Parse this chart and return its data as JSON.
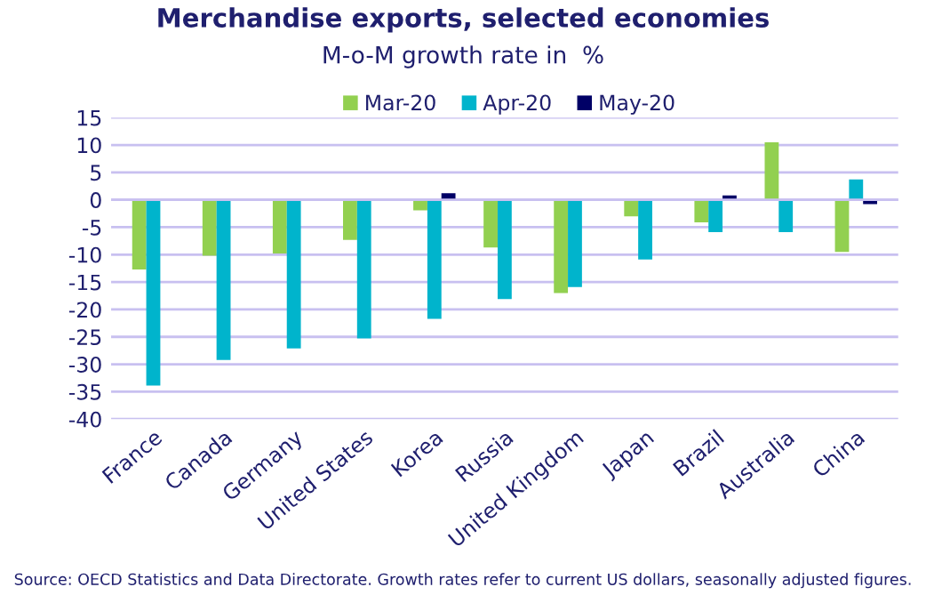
{
  "chart_data": {
    "type": "bar",
    "title": "Merchandise exports, selected economies",
    "subtitle": "M-o-M growth rate in  %",
    "categories": [
      "France",
      "Canada",
      "Germany",
      "United States",
      "Korea",
      "Russia",
      "United Kingdom",
      "Japan",
      "Brazil",
      "Australia",
      "China"
    ],
    "series": [
      {
        "name": "Mar-20",
        "color": "#92d050",
        "values": [
          -12.7,
          -10.2,
          -9.8,
          -7.3,
          -1.9,
          -8.7,
          -17,
          -3,
          -4.1,
          10.5,
          -9.5
        ]
      },
      {
        "name": "Apr-20",
        "color": "#00b4cc",
        "values": [
          -33.9,
          -29.2,
          -27.1,
          -25.3,
          -21.7,
          -18.1,
          -15.9,
          -10.9,
          -5.9,
          -5.9,
          3.7
        ]
      },
      {
        "name": "May-20",
        "color": "#000066",
        "values": [
          null,
          null,
          null,
          null,
          1.2,
          null,
          null,
          null,
          0.8,
          null,
          -0.8
        ]
      }
    ],
    "ylim": [
      -40,
      15
    ],
    "yticks": [
      -40,
      -35,
      -30,
      -25,
      -20,
      -15,
      -10,
      -5,
      0,
      5,
      10,
      15
    ],
    "grid": "y",
    "legend": "top",
    "annotations": [
      "Source: OECD Statistics and Data Directorate. Growth rates refer to current US dollars, seasonally adjusted figures."
    ]
  }
}
